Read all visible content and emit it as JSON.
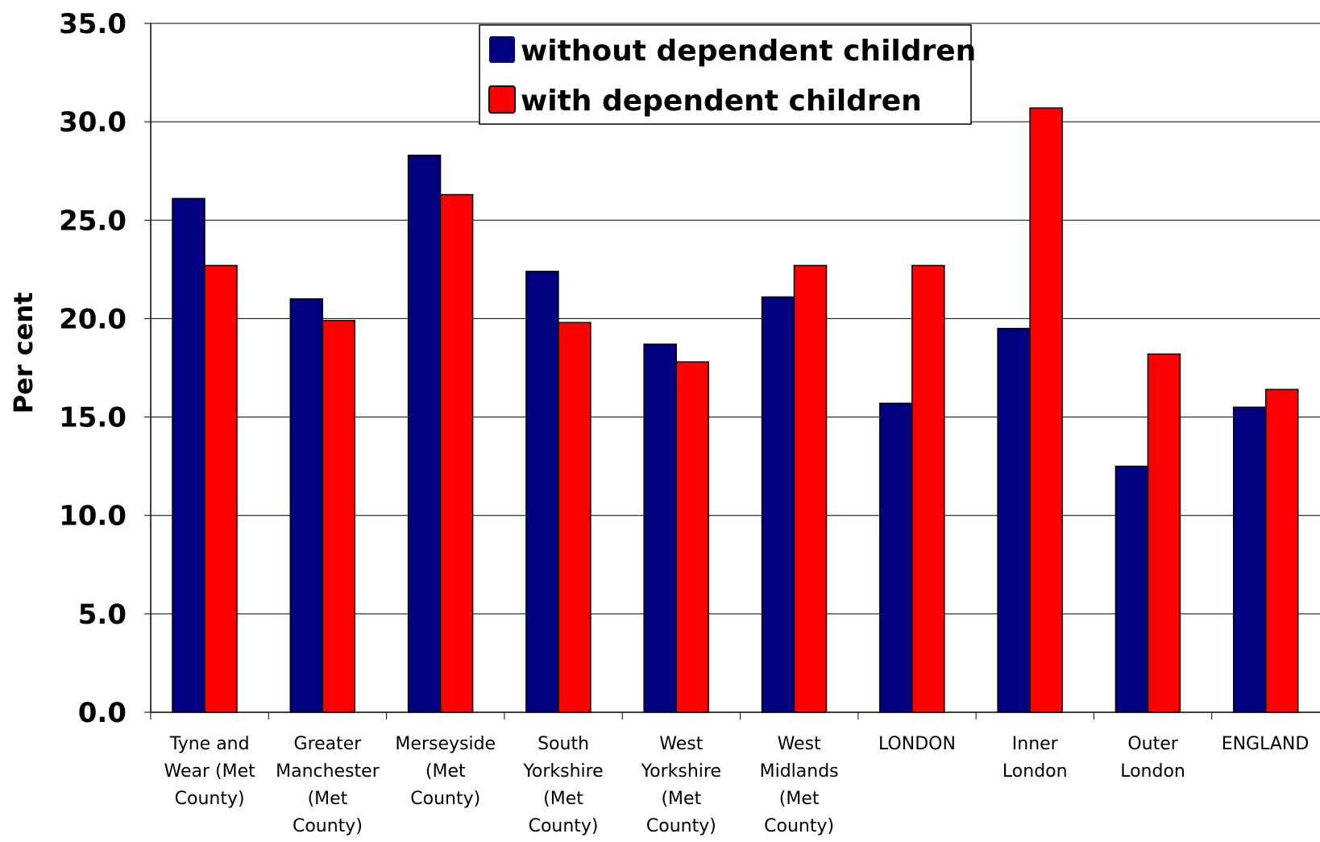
{
  "chart_data": {
    "type": "bar",
    "title": "",
    "xlabel": "",
    "ylabel": "Per cent",
    "ylim": [
      0,
      35
    ],
    "yticks": [
      "0.0",
      "5.0",
      "10.0",
      "15.0",
      "20.0",
      "25.0",
      "30.0",
      "35.0"
    ],
    "grid": true,
    "legend_position": "top-center",
    "categories": [
      [
        "Tyne and",
        "Wear (Met",
        "County)"
      ],
      [
        "Greater",
        "Manchester",
        "(Met",
        "County)"
      ],
      [
        "Merseyside",
        "(Met",
        "County)"
      ],
      [
        "South",
        "Yorkshire",
        "(Met",
        "County)"
      ],
      [
        "West",
        "Yorkshire",
        "(Met",
        "County)"
      ],
      [
        "West",
        "Midlands",
        "(Met",
        "County)"
      ],
      [
        "LONDON"
      ],
      [
        "Inner",
        "London"
      ],
      [
        "Outer",
        "London"
      ],
      [
        "ENGLAND"
      ]
    ],
    "series": [
      {
        "name": "without dependent children",
        "color": "#000080",
        "values": [
          26.1,
          21.0,
          28.3,
          22.4,
          18.7,
          21.1,
          15.7,
          19.5,
          12.5,
          15.5
        ]
      },
      {
        "name": "with dependent children",
        "color": "#ff0000",
        "values": [
          22.7,
          19.9,
          26.3,
          19.8,
          17.8,
          22.7,
          22.7,
          30.7,
          18.2,
          16.4
        ]
      }
    ]
  }
}
